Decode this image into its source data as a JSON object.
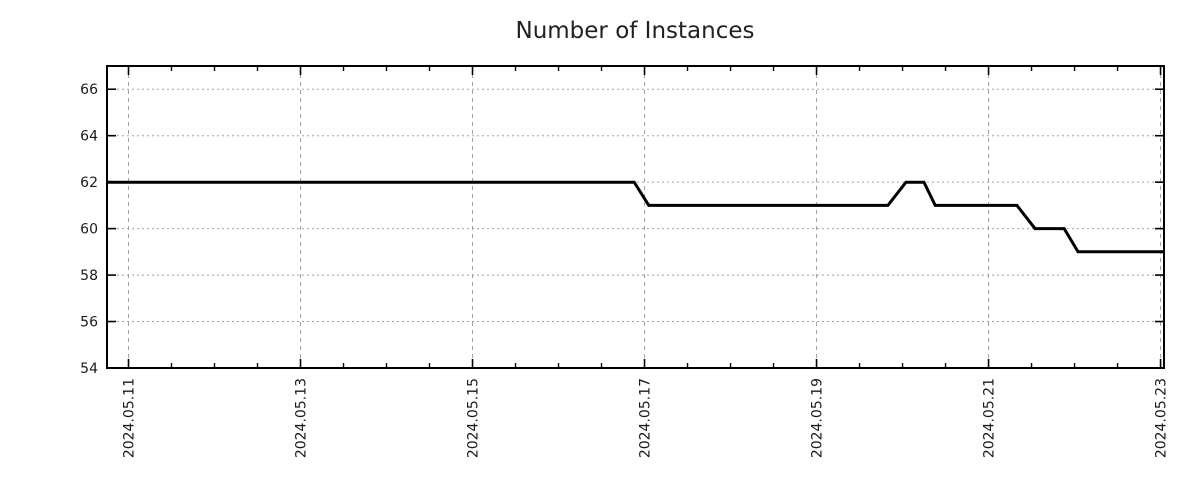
{
  "page": {
    "background": "#ffffff"
  },
  "chart_data": {
    "type": "line",
    "title": "Number of Instances",
    "xlabel": "",
    "ylabel": "",
    "grid": true,
    "legend": "none",
    "background": "#ffffff",
    "border_color": "#000000",
    "grid_color": "#a0a0a0",
    "text_color": "#1a1a1a",
    "x_axis": {
      "unit": "days relative to 2024.05.11",
      "range": [
        -0.25,
        12.04
      ],
      "major_ticks": [
        {
          "x": 0,
          "label": "2024.05.11"
        },
        {
          "x": 2,
          "label": "2024.05.13"
        },
        {
          "x": 4,
          "label": "2024.05.15"
        },
        {
          "x": 6,
          "label": "2024.05.17"
        },
        {
          "x": 8,
          "label": "2024.05.19"
        },
        {
          "x": 10,
          "label": "2024.05.21"
        },
        {
          "x": 12,
          "label": "2024.05.23"
        }
      ],
      "minor_tick_step": 0.5
    },
    "y_axis": {
      "range": [
        54,
        67
      ],
      "ticks": [
        54,
        56,
        58,
        60,
        62,
        64,
        66
      ]
    },
    "series": [
      {
        "name": "instances",
        "color": "#000000",
        "width": 3,
        "points": [
          [
            -0.25,
            62
          ],
          [
            5.88,
            62
          ],
          [
            6.05,
            61
          ],
          [
            8.83,
            61
          ],
          [
            9.04,
            62
          ],
          [
            9.25,
            62
          ],
          [
            9.38,
            61
          ],
          [
            10.33,
            61
          ],
          [
            10.54,
            60
          ],
          [
            10.88,
            60
          ],
          [
            11.04,
            59
          ],
          [
            12.04,
            59
          ]
        ]
      }
    ]
  }
}
